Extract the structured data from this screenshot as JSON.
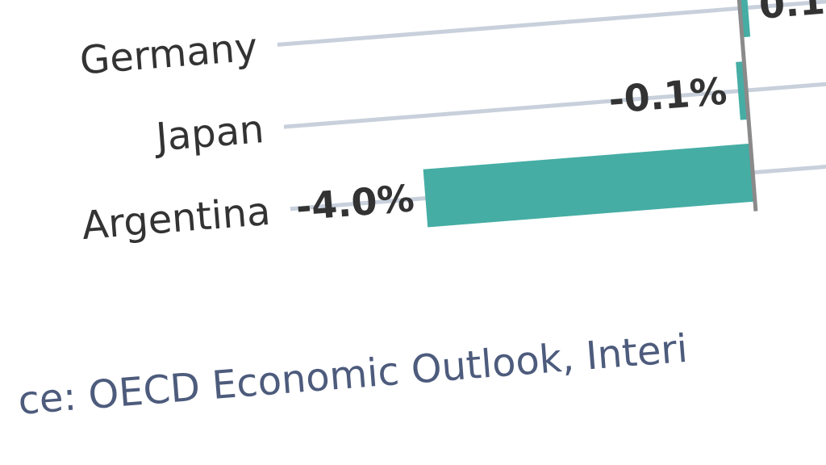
{
  "chart_data": {
    "type": "bar",
    "orientation": "horizontal",
    "categories": [
      "Germany",
      "Japan",
      "Argentina"
    ],
    "values": [
      0.1,
      -0.1,
      -4.0
    ],
    "value_labels": [
      "0.1",
      "-0.1%",
      "-4.0%"
    ],
    "color": "#45ada4",
    "source": "ce: OECD Economic Outlook, Interi"
  }
}
